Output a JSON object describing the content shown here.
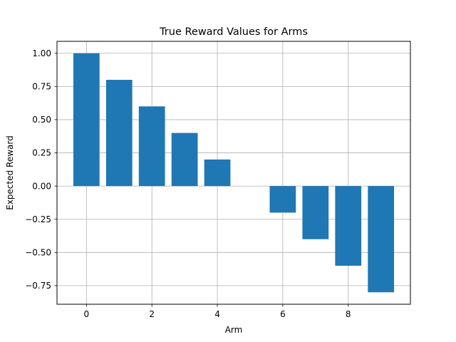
{
  "chart_data": {
    "type": "bar",
    "title": "True Reward Values for Arms",
    "xlabel": "Arm",
    "ylabel": "Expected Reward",
    "categories": [
      0,
      1,
      2,
      3,
      4,
      5,
      6,
      7,
      8,
      9
    ],
    "values": [
      1.0,
      0.8,
      0.6,
      0.4,
      0.2,
      0.0,
      -0.2,
      -0.4,
      -0.6,
      -0.8
    ],
    "xlim": [
      -0.9,
      9.9
    ],
    "ylim": [
      -0.89,
      1.09
    ],
    "xticks": [
      0,
      2,
      4,
      6,
      8
    ],
    "xtick_labels": [
      "0",
      "2",
      "4",
      "6",
      "8"
    ],
    "yticks": [
      1.0,
      0.75,
      0.5,
      0.25,
      0.0,
      -0.25,
      -0.5,
      -0.75
    ],
    "ytick_labels": [
      "1.00",
      "0.75",
      "0.50",
      "0.25",
      "0.00",
      "−0.25",
      "−0.50",
      "−0.75"
    ],
    "grid": true,
    "bar_color": "#1f77b4",
    "grid_color": "#b0b0b0"
  }
}
